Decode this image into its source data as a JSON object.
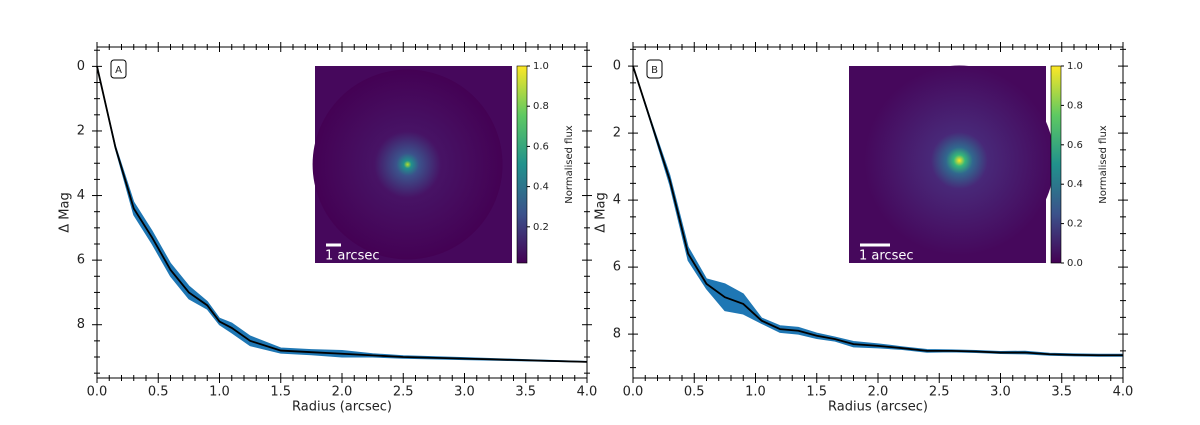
{
  "chart_data": [
    {
      "type": "line",
      "label": "A",
      "xlabel": "Radius (arcsec)",
      "ylabel": "Δ Mag",
      "y_inverted": true,
      "xlim": [
        0,
        4
      ],
      "ylim": [
        -0.6,
        9.65
      ],
      "xticks": [
        {
          "value": 0,
          "label": "0.0"
        },
        0.5,
        {
          "value": 1,
          "label": "1.0"
        },
        1.5,
        {
          "value": 2,
          "label": "2.0"
        },
        2.5,
        {
          "value": 3,
          "label": "3.0"
        },
        3.5,
        {
          "value": 4,
          "label": "4.0"
        }
      ],
      "yticks": [
        0,
        2,
        4,
        6,
        8
      ],
      "x": [
        0,
        0.15,
        0.3,
        0.45,
        0.6,
        0.75,
        0.9,
        1.0,
        1.1,
        1.25,
        1.5,
        1.75,
        2.0,
        2.25,
        2.5,
        3.0,
        3.5,
        4.0
      ],
      "series": [
        {
          "color": "#000000",
          "band_color": "#1f77b4",
          "values": [
            0,
            2.5,
            4.4,
            5.3,
            6.3,
            7.0,
            7.4,
            7.9,
            8.1,
            8.5,
            8.8,
            8.85,
            8.9,
            8.95,
            9.0,
            9.05,
            9.1,
            9.15
          ],
          "error": [
            0,
            0.05,
            0.2,
            0.2,
            0.2,
            0.2,
            0.12,
            0.1,
            0.15,
            0.15,
            0.08,
            0.08,
            0.1,
            0.05,
            0.04,
            0.03,
            0.02,
            0.01
          ]
        }
      ],
      "inset": {
        "scale_label": "1 arcsec",
        "colorbar_label": "Normalised flux",
        "colorbar_lim": [
          0.02,
          1.0
        ],
        "colorbar_ticks": [
          0.2,
          0.4,
          0.6,
          0.8,
          {
            "value": 1.0,
            "label": "1.0"
          }
        ]
      }
    },
    {
      "type": "line",
      "label": "B",
      "xlabel": "Radius (arcsec)",
      "ylabel": "Δ Mag",
      "y_inverted": true,
      "xlim": [
        0,
        4
      ],
      "ylim": [
        -0.57,
        9.31
      ],
      "xticks": [
        {
          "value": 0,
          "label": "0.0"
        },
        0.5,
        {
          "value": 1,
          "label": "1.0"
        },
        1.5,
        {
          "value": 2,
          "label": "2.0"
        },
        2.5,
        {
          "value": 3,
          "label": "3.0"
        },
        3.5,
        {
          "value": 4,
          "label": "4.0"
        }
      ],
      "yticks": [
        0,
        2,
        4,
        6,
        8
      ],
      "x": [
        0,
        0.15,
        0.3,
        0.45,
        0.6,
        0.75,
        0.9,
        1.05,
        1.2,
        1.35,
        1.5,
        1.65,
        1.8,
        2.0,
        2.2,
        2.4,
        2.6,
        2.8,
        3.0,
        3.2,
        3.4,
        3.6,
        3.8,
        4.0
      ],
      "series": [
        {
          "color": "#000000",
          "band_color": "#1f77b4",
          "values": [
            0,
            1.7,
            3.4,
            5.6,
            6.5,
            6.9,
            7.1,
            7.6,
            7.85,
            7.9,
            8.05,
            8.15,
            8.3,
            8.35,
            8.42,
            8.5,
            8.5,
            8.52,
            8.55,
            8.55,
            8.6,
            8.62,
            8.63,
            8.63
          ],
          "error": [
            0,
            0.05,
            0.15,
            0.2,
            0.15,
            0.4,
            0.3,
            0.08,
            0.1,
            0.1,
            0.08,
            0.06,
            0.08,
            0.06,
            0.04,
            0.04,
            0.03,
            0.03,
            0.03,
            0.04,
            0.03,
            0.03,
            0.03,
            0.03
          ]
        }
      ],
      "inset": {
        "scale_label": "1 arcsec",
        "colorbar_label": "Normalised flux",
        "colorbar_lim": [
          0,
          1.0
        ],
        "colorbar_ticks": [
          {
            "value": 0,
            "label": "0.0"
          },
          0.2,
          0.4,
          0.6,
          0.8,
          {
            "value": 1.0,
            "label": "1.0"
          }
        ]
      }
    }
  ]
}
